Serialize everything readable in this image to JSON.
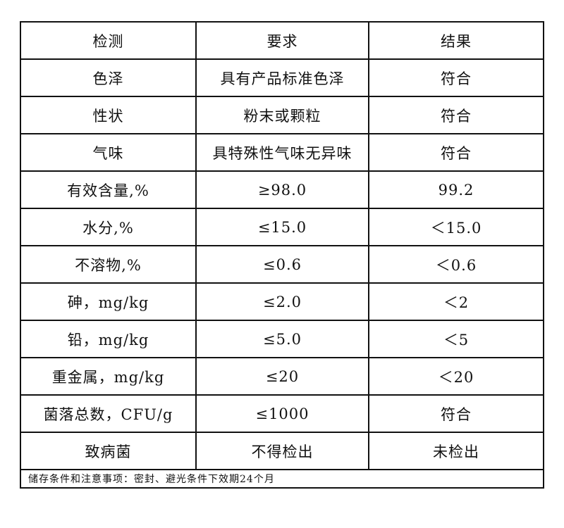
{
  "header": {
    "item": "检测",
    "requirement": "要求",
    "result": "结果"
  },
  "rows": [
    {
      "item": "色泽",
      "requirement": "具有产品标准色泽",
      "result": "符合"
    },
    {
      "item": "性状",
      "requirement": "粉末或颗粒",
      "result": "符合"
    },
    {
      "item": "气味",
      "requirement": "具特殊性气味无异味",
      "result": "符合"
    },
    {
      "item": "有效含量,%",
      "requirement": "≥98.0",
      "result": "99.2"
    },
    {
      "item": "水分,%",
      "requirement": "≤15.0",
      "result": "＜15.0"
    },
    {
      "item": "不溶物,%",
      "requirement": "≤0.6",
      "result": "＜0.6"
    },
    {
      "item": "砷，mg/kg",
      "requirement": "≤2.0",
      "result": "＜2"
    },
    {
      "item": "铅，mg/kg",
      "requirement": "≤5.0",
      "result": "＜5"
    },
    {
      "item": "重金属，mg/kg",
      "requirement": "≤20",
      "result": "＜20"
    },
    {
      "item": "菌落总数，CFU/g",
      "requirement": "≤1000",
      "result": "符合"
    },
    {
      "item": "致病菌",
      "requirement": "不得检出",
      "result": "未检出"
    }
  ],
  "footer": "储存条件和注意事项：密封、避光条件下效期24个月"
}
